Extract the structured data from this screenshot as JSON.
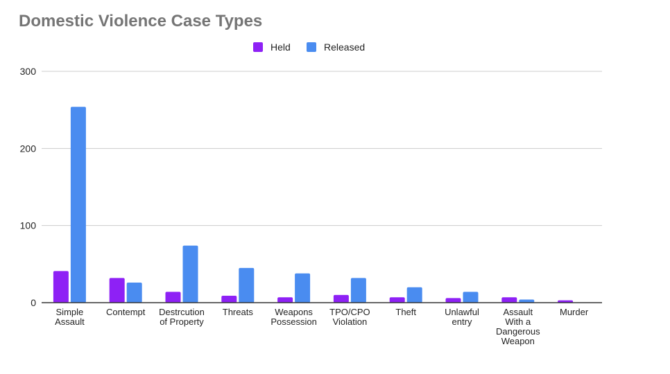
{
  "chart_data": {
    "type": "bar",
    "title": "Domestic Violence Case Types",
    "xlabel": "",
    "ylabel": "",
    "ylim": [
      0,
      300
    ],
    "yticks": [
      "0",
      "100",
      "200",
      "300"
    ],
    "grid": true,
    "legend_position": "top-center",
    "categories": [
      [
        "Simple",
        "Assault"
      ],
      [
        "Contempt"
      ],
      [
        "Destrcution",
        "of Property"
      ],
      [
        "Threats"
      ],
      [
        "Weapons",
        "Possession"
      ],
      [
        "TPO/CPO",
        "Violation"
      ],
      [
        "Theft"
      ],
      [
        "Unlawful",
        "entry"
      ],
      [
        "Assault",
        "With a",
        "Dangerous",
        "Weapon"
      ],
      [
        "Murder"
      ]
    ],
    "series": [
      {
        "name": "Held",
        "color": "#8e21f5",
        "values": [
          41,
          32,
          14,
          9,
          7,
          10,
          7,
          6,
          7,
          3
        ]
      },
      {
        "name": "Released",
        "color": "#4a8cf0",
        "values": [
          254,
          26,
          74,
          45,
          38,
          32,
          20,
          14,
          4,
          0
        ]
      }
    ]
  }
}
